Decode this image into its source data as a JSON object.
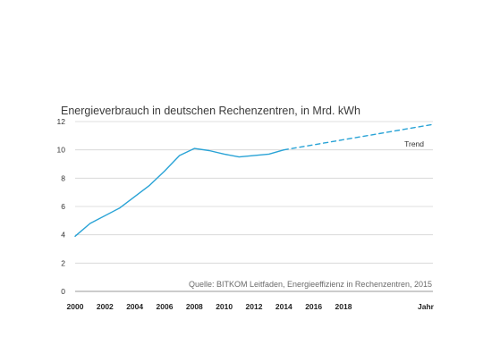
{
  "chart_data": {
    "type": "line",
    "title": "Energieverbrauch in deutschen Rechenzentren, in Mrd. kWh",
    "xlabel": "Jahr",
    "ylabel": "",
    "xlim": [
      2000,
      2024
    ],
    "ylim": [
      0,
      12
    ],
    "x_ticks": [
      "2000",
      "2002",
      "2004",
      "2006",
      "2008",
      "2010",
      "2012",
      "2014",
      "2016",
      "2018"
    ],
    "y_ticks": [
      "0",
      "2",
      "4",
      "6",
      "8",
      "10",
      "12"
    ],
    "grid": true,
    "colors": {
      "line": "#29a3d6",
      "grid": "#d4d4d4",
      "axis": "#9a9a9a"
    },
    "series": [
      {
        "style": "solid",
        "x": [
          2000,
          2001,
          2003,
          2005,
          2006,
          2007,
          2008,
          2009,
          2010,
          2011,
          2013,
          2014
        ],
        "y": [
          3.9,
          4.8,
          5.9,
          7.5,
          8.5,
          9.6,
          10.1,
          9.95,
          9.7,
          9.5,
          9.7,
          10.0
        ]
      },
      {
        "style": "dashed",
        "name": "Trend",
        "x": [
          2014,
          2024
        ],
        "y": [
          10.0,
          11.8
        ]
      }
    ],
    "source_note": "Quelle: BITKOM Leitfaden, Energieeffizienz in Rechenzentren, 2015"
  }
}
